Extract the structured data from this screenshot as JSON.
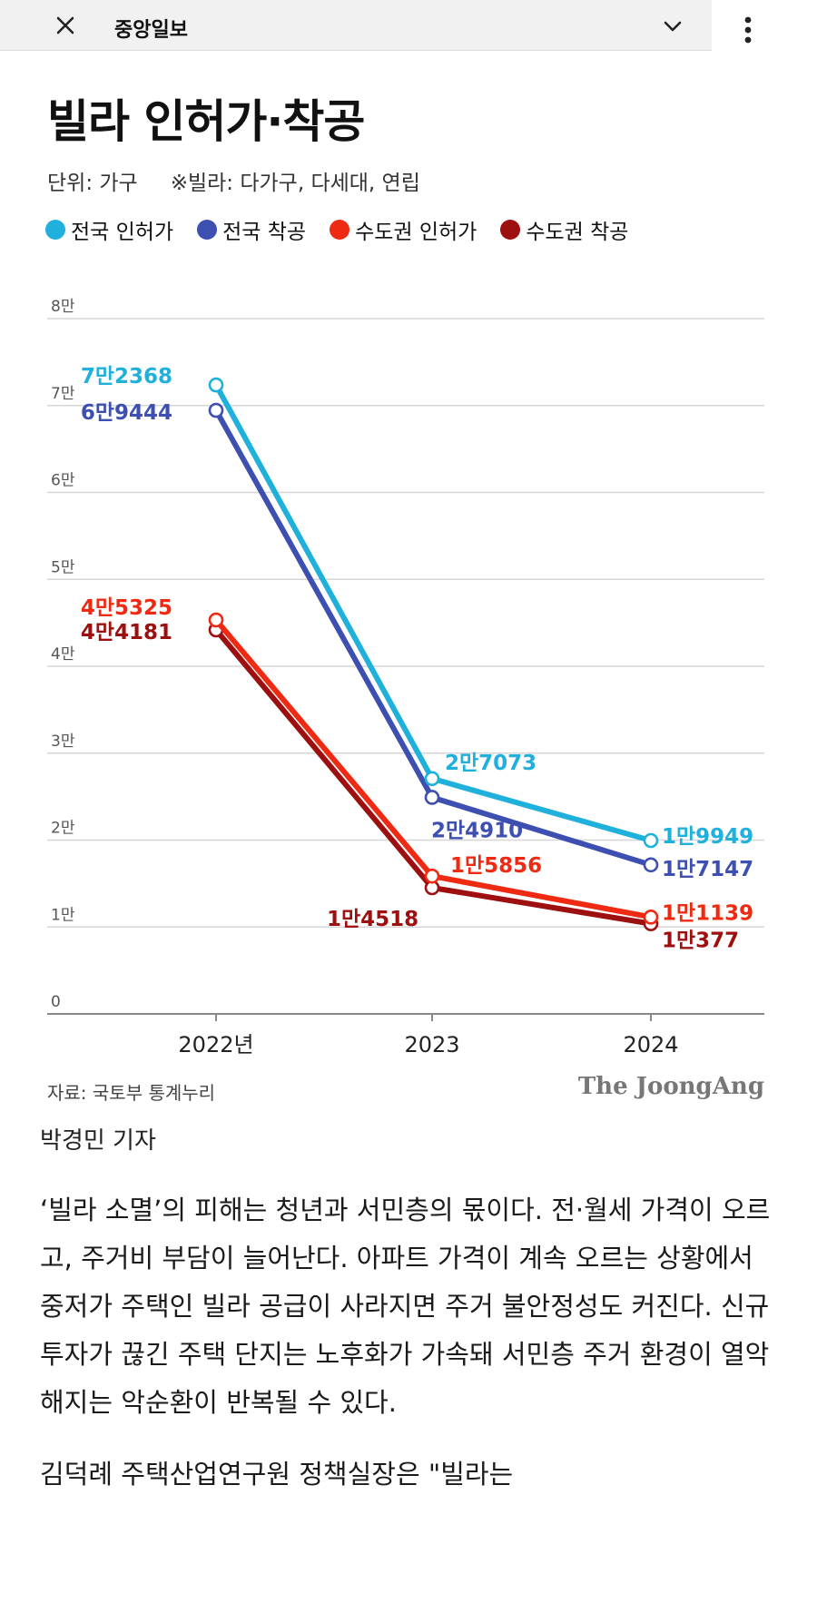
{
  "topbar": {
    "title": "중앙일보",
    "close_icon": "close-icon",
    "chevron_icon": "chevron-down-icon",
    "menu_icon": "more-vertical-icon"
  },
  "chart_header": {
    "title": "빌라 인허가·착공",
    "unit": "단위: 가구",
    "note": "※빌라: 다가구, 다세대, 연립"
  },
  "colors": {
    "national_permit": "#1fb1dc",
    "national_start": "#3d4fb0",
    "metro_permit": "#ef2a12",
    "metro_start": "#9e0f0f"
  },
  "chart_data": {
    "type": "line",
    "categories": [
      "2022년",
      "2023",
      "2024"
    ],
    "ylim": [
      0,
      80000
    ],
    "y_ticks": [
      {
        "value": 0,
        "label": "0"
      },
      {
        "value": 10000,
        "label": "1만"
      },
      {
        "value": 20000,
        "label": "2만"
      },
      {
        "value": 30000,
        "label": "3만"
      },
      {
        "value": 40000,
        "label": "4만"
      },
      {
        "value": 50000,
        "label": "5만"
      },
      {
        "value": 60000,
        "label": "6만"
      },
      {
        "value": 70000,
        "label": "7만"
      },
      {
        "value": 80000,
        "label": "8만"
      }
    ],
    "grid": true,
    "legend_position": "top-left",
    "series": [
      {
        "name": "전국 인허가",
        "color": "#1fb1dc",
        "values": [
          72368,
          27073,
          19949
        ],
        "labels": [
          "7만2368",
          "2만7073",
          "1만9949"
        ]
      },
      {
        "name": "전국 착공",
        "color": "#3d4fb0",
        "values": [
          69444,
          24910,
          17147
        ],
        "labels": [
          "6만9444",
          "2만4910",
          "1만7147"
        ]
      },
      {
        "name": "수도권 인허가",
        "color": "#ef2a12",
        "values": [
          45325,
          15856,
          11139
        ],
        "labels": [
          "4만5325",
          "1만5856",
          "1만1139"
        ]
      },
      {
        "name": "수도권 착공",
        "color": "#9e0f0f",
        "values": [
          44181,
          14518,
          10377
        ],
        "labels": [
          "4만4181",
          "1만4518",
          "1만377"
        ]
      }
    ]
  },
  "footer": {
    "source": "자료: 국토부 통계누리",
    "brand": "The JoongAng"
  },
  "article": {
    "byline": "박경민 기자",
    "paragraphs": [
      "‘빌라 소멸’의 피해는 청년과 서민층의 몫이다. 전·월세 가격이 오르고, 주거비 부담이 늘어난다. 아파트 가격이 계속 오르는 상황에서 중저가 주택인 빌라 공급이 사라지면 주거 불안정성도 커진다. 신규 투자가 끊긴 주택 단지는 노후화가 가속돼 서민층 주거 환경이 열악해지는 악순환이 반복될 수 있다.",
      "김덕례 주택산업연구원 정책실장은 \"빌라는"
    ]
  }
}
